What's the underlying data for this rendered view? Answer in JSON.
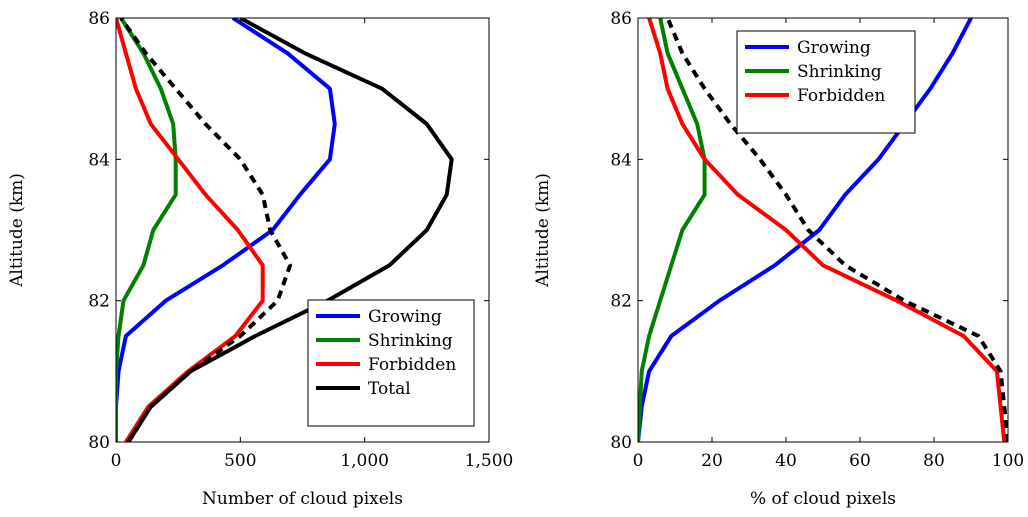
{
  "chart_data": [
    {
      "type": "line",
      "xlabel": "Number of cloud pixels",
      "ylabel": "Altitude (km)",
      "xlim": [
        0,
        1500
      ],
      "ylim": [
        80,
        86
      ],
      "xticks": [
        "0",
        "500",
        "1,000",
        "1,500"
      ],
      "yticks": [
        "80",
        "82",
        "84",
        "86"
      ],
      "grid": false,
      "legend": "bottom-right",
      "legend_entries": [
        "Growing",
        "Shrinking",
        "Forbidden",
        "Total"
      ],
      "series": [
        {
          "name": "Growing",
          "color": "#0000ff",
          "dash": "solid",
          "x": [
            0,
            0,
            10,
            40,
            200,
            430,
            630,
            740,
            860,
            880,
            860,
            690,
            470
          ],
          "y": [
            80,
            80.5,
            81,
            81.5,
            82,
            82.5,
            83,
            83.5,
            84,
            84.5,
            85,
            85.5,
            86
          ]
        },
        {
          "name": "Shrinking",
          "color": "#008000",
          "dash": "solid",
          "x": [
            0,
            0,
            0,
            10,
            30,
            110,
            150,
            240,
            240,
            230,
            180,
            110,
            20
          ],
          "y": [
            80,
            80.5,
            81,
            81.5,
            82,
            82.5,
            83,
            83.5,
            84,
            84.5,
            85,
            85.5,
            86
          ]
        },
        {
          "name": "Forbidden",
          "color": "#ff0000",
          "dash": "solid",
          "x": [
            40,
            130,
            290,
            480,
            590,
            590,
            490,
            360,
            250,
            140,
            80,
            40,
            0
          ],
          "y": [
            80,
            80.5,
            81,
            81.5,
            82,
            82.5,
            83,
            83.5,
            84,
            84.5,
            85,
            85.5,
            86
          ]
        },
        {
          "name": "Total",
          "color": "#000000",
          "dash": "solid",
          "x": [
            50,
            140,
            300,
            560,
            850,
            1100,
            1250,
            1330,
            1350,
            1250,
            1070,
            760,
            500
          ],
          "y": [
            80,
            80.5,
            81,
            81.5,
            82,
            82.5,
            83,
            83.5,
            84,
            84.5,
            85,
            85.5,
            86
          ]
        },
        {
          "name": "",
          "color": "#000000",
          "dash": "dashed",
          "x": [
            50,
            140,
            300,
            500,
            650,
            700,
            620,
            590,
            500,
            360,
            240,
            120,
            20
          ],
          "y": [
            80,
            80.5,
            81,
            81.5,
            82,
            82.5,
            83,
            83.5,
            84,
            84.5,
            85,
            85.5,
            86
          ]
        }
      ]
    },
    {
      "type": "line",
      "xlabel": "% of cloud pixels",
      "ylabel": "Altitude (km)",
      "xlim": [
        0,
        100
      ],
      "ylim": [
        80,
        86
      ],
      "xticks": [
        "0",
        "20",
        "40",
        "60",
        "80",
        "100"
      ],
      "yticks": [
        "80",
        "82",
        "84",
        "86"
      ],
      "grid": false,
      "legend": "top-right",
      "legend_entries": [
        "Growing",
        "Shrinking",
        "Forbidden"
      ],
      "series": [
        {
          "name": "Growing",
          "color": "#0000ff",
          "dash": "solid",
          "x": [
            0,
            1,
            3,
            9,
            22,
            37,
            49,
            56,
            65,
            72,
            79,
            85,
            90
          ],
          "y": [
            80,
            80.5,
            81,
            81.5,
            82,
            82.5,
            83,
            83.5,
            84,
            84.5,
            85,
            85.5,
            86
          ]
        },
        {
          "name": "Shrinking",
          "color": "#008000",
          "dash": "solid",
          "x": [
            0,
            0.5,
            1,
            3,
            6,
            9,
            12,
            18,
            18,
            16,
            12,
            8,
            6
          ],
          "y": [
            80,
            80.5,
            81,
            81.5,
            82,
            82.5,
            83,
            83.5,
            84,
            84.5,
            85,
            85.5,
            86
          ]
        },
        {
          "name": "Forbidden",
          "color": "#ff0000",
          "dash": "solid",
          "x": [
            99,
            98,
            97,
            88,
            70,
            50,
            40,
            27,
            18,
            12,
            8,
            6,
            3
          ],
          "y": [
            80,
            80.5,
            81,
            81.5,
            82,
            82.5,
            83,
            83.5,
            84,
            84.5,
            85,
            85.5,
            86
          ]
        },
        {
          "name": "",
          "color": "#000000",
          "dash": "dashed",
          "x": [
            100,
            99,
            98,
            92,
            72,
            56,
            46,
            40,
            33,
            25,
            18,
            12,
            8
          ],
          "y": [
            80,
            80.5,
            81,
            81.5,
            82,
            82.5,
            83,
            83.5,
            84,
            84.5,
            85,
            85.5,
            86
          ]
        }
      ]
    }
  ]
}
